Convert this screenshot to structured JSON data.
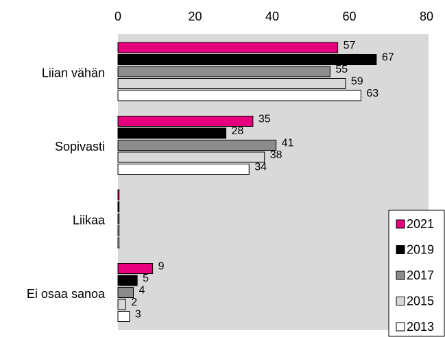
{
  "chart_data": {
    "type": "hbar",
    "categories": [
      "Liian vähän",
      "Sopivasti",
      "Liikaa",
      "Ei osaa sanoa"
    ],
    "series": [
      {
        "name": "2021",
        "color": "#e6007e",
        "values": [
          57,
          35,
          0.3,
          9
        ],
        "value_labels": [
          "57",
          "35",
          null,
          "9"
        ]
      },
      {
        "name": "2019",
        "color": "#000000",
        "values": [
          67,
          28,
          0.3,
          5
        ],
        "value_labels": [
          "67",
          "28",
          null,
          "5"
        ]
      },
      {
        "name": "2017",
        "color": "#8c8c8c",
        "values": [
          55,
          41,
          0.3,
          4
        ],
        "value_labels": [
          "55",
          "41",
          null,
          "4"
        ]
      },
      {
        "name": "2015",
        "color": "#d9d9d9",
        "values": [
          59,
          38,
          0.3,
          2
        ],
        "value_labels": [
          "59",
          "38",
          null,
          "2"
        ]
      },
      {
        "name": "2013",
        "color": "#ffffff",
        "values": [
          63,
          34,
          0.3,
          3
        ],
        "value_labels": [
          "63",
          "34",
          null,
          "3"
        ]
      }
    ],
    "xlim": [
      0,
      80
    ],
    "xticks": [
      0,
      20,
      40,
      60,
      80
    ],
    "grid": false,
    "legend": "lower right"
  }
}
